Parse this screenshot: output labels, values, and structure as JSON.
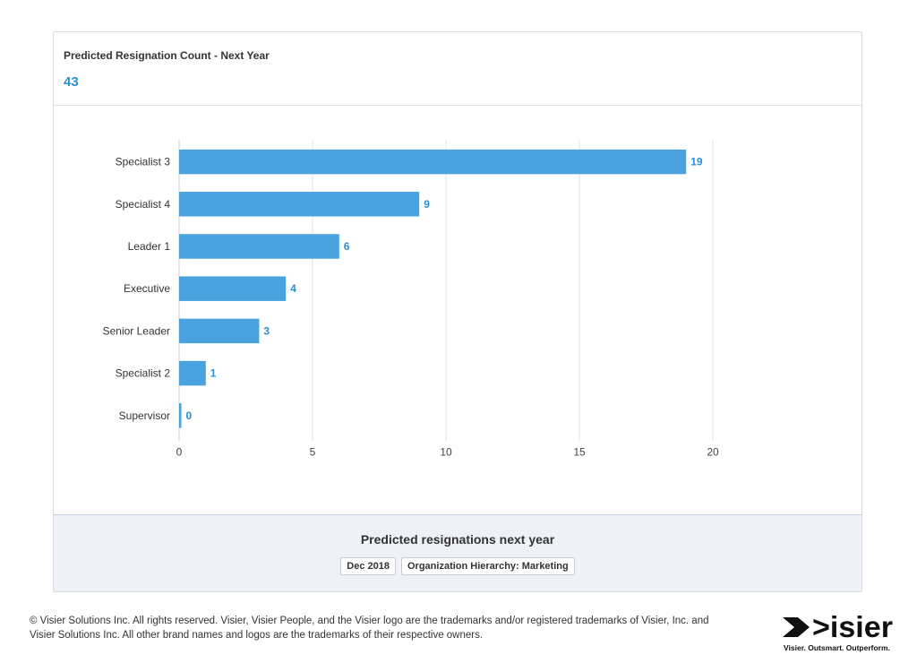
{
  "metric": {
    "label": "Predicted Resignation Count - Next Year",
    "value": "43"
  },
  "footer": {
    "title": "Predicted resignations next year",
    "filters": [
      "Dec 2018",
      "Organization Hierarchy: Marketing"
    ]
  },
  "copyright": {
    "line1": "© Visier Solutions Inc. All rights reserved. Visier, Visier People, and the Visier logo are the trademarks and/or registered trademarks of Visier, Inc. and",
    "line2": "Visier Solutions Inc. All other brand names and logos are the trademarks of their respective owners."
  },
  "brand": {
    "logo_text": ">isier",
    "tagline": "Visier. Outsmart. Outperform."
  },
  "colors": {
    "bar": "#4aa3df",
    "value_text": "#2a8fd4",
    "grid": "#dfe3e8"
  },
  "chart_data": {
    "type": "bar",
    "orientation": "horizontal",
    "categories": [
      "Specialist 3",
      "Specialist 4",
      "Leader 1",
      "Executive",
      "Senior Leader",
      "Specialist 2",
      "Supervisor"
    ],
    "values": [
      19,
      9,
      6,
      4,
      3,
      1,
      0
    ],
    "data_labels": [
      "19",
      "9",
      "6",
      "4",
      "3",
      "1",
      "0"
    ],
    "xlim": [
      0,
      20
    ],
    "xticks": [
      0,
      5,
      10,
      15,
      20
    ],
    "grid": true
  }
}
